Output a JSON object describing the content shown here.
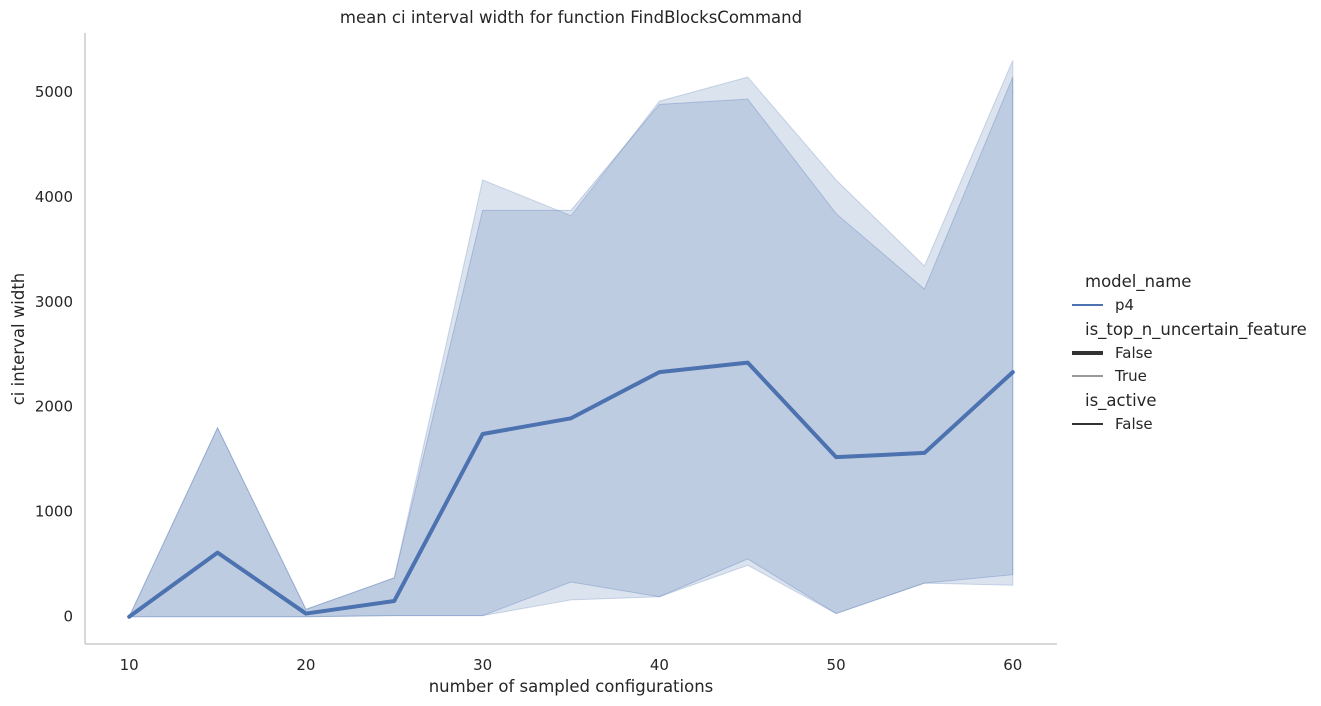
{
  "chart_data": {
    "type": "line",
    "title": "mean ci interval width for function FindBlocksCommand",
    "xlabel": "number of sampled configurations",
    "ylabel": "ci interval width",
    "x": [
      10,
      15,
      20,
      25,
      30,
      35,
      40,
      45,
      50,
      55,
      60
    ],
    "xticks": [
      10,
      20,
      30,
      40,
      50,
      60
    ],
    "yticks": [
      0,
      1000,
      2000,
      3000,
      4000,
      5000
    ],
    "xlim": [
      7.5,
      62.5
    ],
    "ylim": [
      -260,
      5560
    ],
    "grid": false,
    "legend_position": "right",
    "series": [
      {
        "name": "p4",
        "line_width_group": "False",
        "values": [
          0,
          610,
          30,
          150,
          1740,
          1890,
          2330,
          2420,
          1520,
          1560,
          2330
        ],
        "ci_inner": {
          "lower": [
            0,
            0,
            0,
            10,
            10,
            330,
            190,
            550,
            30,
            320,
            400
          ],
          "upper": [
            0,
            1800,
            70,
            370,
            3870,
            3870,
            4880,
            4930,
            3840,
            3120,
            5140
          ]
        },
        "ci_outer": {
          "lower": [
            0,
            0,
            0,
            10,
            10,
            160,
            190,
            490,
            30,
            320,
            300
          ],
          "upper": [
            0,
            1800,
            70,
            370,
            4160,
            3820,
            4910,
            5140,
            4160,
            3340,
            5300
          ]
        }
      }
    ],
    "colors": {
      "line": "#4c72b0",
      "band": "#4c72b0",
      "axis": "#cccccc",
      "text": "#262626"
    }
  },
  "legend": {
    "groups": [
      {
        "title": "model_name",
        "items": [
          {
            "label": "p4",
            "style": "color"
          }
        ]
      },
      {
        "title": "is_top_n_uncertain_feature",
        "items": [
          {
            "label": "False",
            "style": "thick"
          },
          {
            "label": "True",
            "style": "thin"
          }
        ]
      },
      {
        "title": "is_active",
        "items": [
          {
            "label": "False",
            "style": "medium"
          }
        ]
      }
    ]
  }
}
